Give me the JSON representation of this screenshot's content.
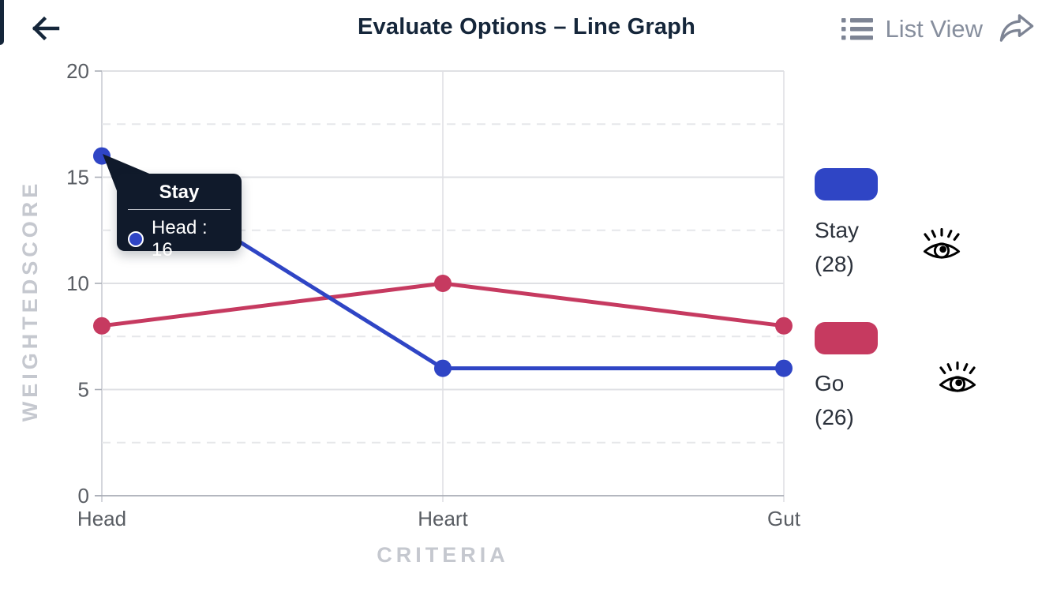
{
  "header": {
    "title": "Evaluate Options – Line Graph",
    "back_icon": "arrow-left",
    "list_view_label": "List View",
    "list_icon": "bulleted-list",
    "share_icon": "share-forward-arrow"
  },
  "colors": {
    "title_navy": "#15263A",
    "icon_gray": "#7D8494",
    "list_view_text": "#868E9D",
    "axis_text": "#595D63",
    "axis_title": "#C5C8CF",
    "gridline": "#DFE0E4",
    "gridline_dashed": "#E6E7EA",
    "axis_line": "#A9ADB6",
    "tooltip_bg": "#101A2B",
    "legend_text": "#2B313B",
    "series_blue": "#2F45C5",
    "series_crimson": "#C63A60",
    "eye_icon": "#000000"
  },
  "chart_data": {
    "type": "line",
    "title": "Evaluate Options – Line Graph",
    "xlabel": "CRITERIA",
    "ylabel": "WEIGHTEDSCORE",
    "categories": [
      "Head",
      "Heart",
      "Gut"
    ],
    "ylim": [
      0,
      20
    ],
    "yticks": [
      0,
      5,
      10,
      15,
      20
    ],
    "grid": "solid horizontal lines at labeled ticks, dashed at midpoints (2.5/7.5/12.5/17.5), solid vertical lines at each category",
    "legend_position": "right",
    "series": [
      {
        "name": "Stay",
        "total_label": "(28)",
        "color": "#2F45C5",
        "values": [
          16,
          6,
          6
        ]
      },
      {
        "name": "Go",
        "total_label": "(26)",
        "color": "#C63A60",
        "values": [
          8,
          10,
          8
        ]
      }
    ],
    "tooltip": {
      "series": "Stay",
      "category": "Head",
      "value": 16,
      "row_label": "Head : 16"
    }
  }
}
